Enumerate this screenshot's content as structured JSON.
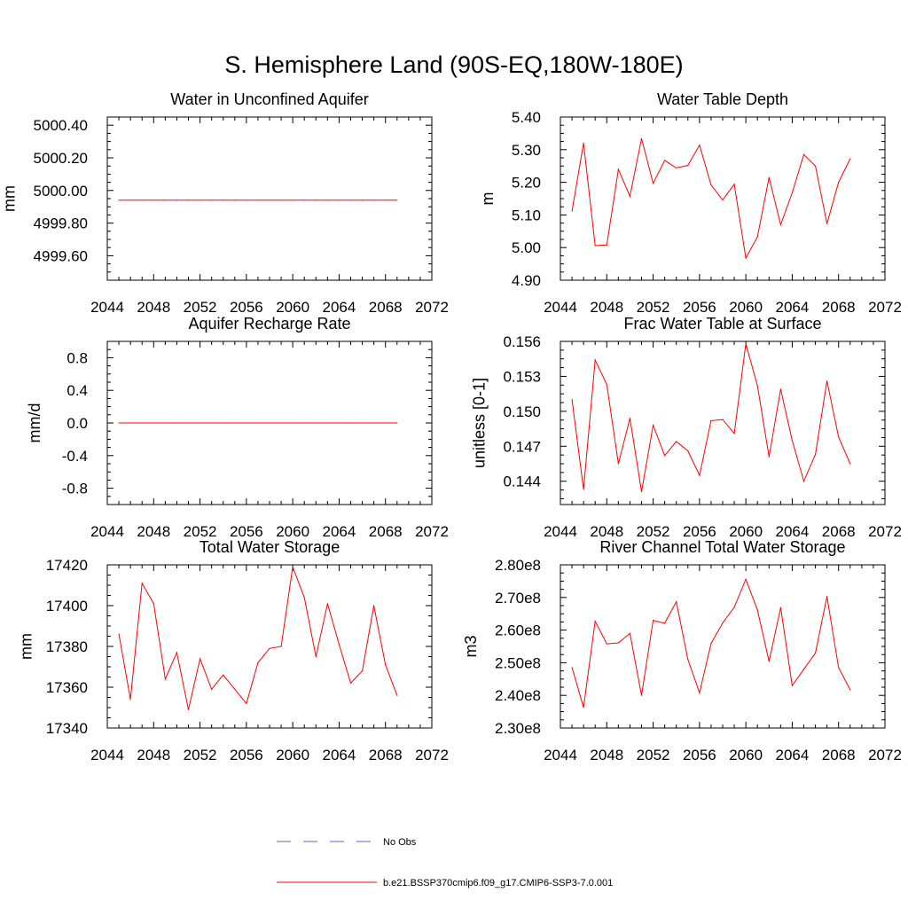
{
  "figure_title": "S. Hemisphere Land (90S-EQ,180W-180E)",
  "legend": {
    "obs_label": "No Obs",
    "obs_color": "#5566cc",
    "model_label": "b.e21.BSSP370cmip6.f09_g17.CMIP6-SSP3-7.0.001",
    "model_color": "#ff0000"
  },
  "chart_data": [
    {
      "type": "line",
      "title": "Water in Unconfined Aquifer",
      "ylabel": "mm",
      "xlim": [
        2044,
        2072
      ],
      "ylim": [
        4999.45,
        5000.45
      ],
      "xticks": [
        "2044",
        "2048",
        "2052",
        "2056",
        "2060",
        "2064",
        "2068",
        "2072"
      ],
      "yticks": [
        {
          "v": 4999.6,
          "label": "4999.60"
        },
        {
          "v": 4999.8,
          "label": "4999.80"
        },
        {
          "v": 5000.0,
          "label": "5000.00"
        },
        {
          "v": 5000.2,
          "label": "5000.20"
        },
        {
          "v": 5000.4,
          "label": "5000.40"
        }
      ],
      "series": [
        {
          "name": "b.e21.BSSP370cmip6.f09_g17.CMIP6-SSP3-7.0.001",
          "x": [
            2045,
            2046,
            2047,
            2048,
            2049,
            2050,
            2051,
            2052,
            2053,
            2054,
            2055,
            2056,
            2057,
            2058,
            2059,
            2060,
            2061,
            2062,
            2063,
            2064,
            2065,
            2066,
            2067,
            2068,
            2069
          ],
          "values": [
            4999.94,
            4999.94,
            4999.94,
            4999.94,
            4999.94,
            4999.94,
            4999.94,
            4999.94,
            4999.94,
            4999.94,
            4999.94,
            4999.94,
            4999.94,
            4999.94,
            4999.94,
            4999.94,
            4999.94,
            4999.94,
            4999.94,
            4999.94,
            4999.94,
            4999.94,
            4999.94,
            4999.94,
            4999.94
          ]
        }
      ]
    },
    {
      "type": "line",
      "title": "Water Table Depth",
      "ylabel": "m",
      "xlim": [
        2044,
        2072
      ],
      "ylim": [
        4.9,
        5.4
      ],
      "xticks": [
        "2044",
        "2048",
        "2052",
        "2056",
        "2060",
        "2064",
        "2068",
        "2072"
      ],
      "yticks": [
        {
          "v": 4.9,
          "label": "4.90"
        },
        {
          "v": 5.0,
          "label": "5.00"
        },
        {
          "v": 5.1,
          "label": "5.10"
        },
        {
          "v": 5.2,
          "label": "5.20"
        },
        {
          "v": 5.3,
          "label": "5.30"
        },
        {
          "v": 5.4,
          "label": "5.40"
        }
      ],
      "series": [
        {
          "name": "b.e21.BSSP370cmip6.f09_g17.CMIP6-SSP3-7.0.001",
          "x": [
            2045,
            2046,
            2047,
            2048,
            2049,
            2050,
            2051,
            2052,
            2053,
            2054,
            2055,
            2056,
            2057,
            2058,
            2059,
            2060,
            2061,
            2062,
            2063,
            2064,
            2065,
            2066,
            2067,
            2068,
            2069
          ],
          "values": [
            5.112,
            5.32,
            5.006,
            5.008,
            5.24,
            5.157,
            5.334,
            5.197,
            5.267,
            5.244,
            5.252,
            5.314,
            5.192,
            5.146,
            5.194,
            4.968,
            5.033,
            5.215,
            5.07,
            5.168,
            5.285,
            5.25,
            5.073,
            5.2,
            5.272
          ]
        }
      ]
    },
    {
      "type": "line",
      "title": "Aquifer Recharge Rate",
      "ylabel": "mm/d",
      "xlim": [
        2044,
        2072
      ],
      "ylim": [
        -1.0,
        1.0
      ],
      "xticks": [
        "2044",
        "2048",
        "2052",
        "2056",
        "2060",
        "2064",
        "2068",
        "2072"
      ],
      "yticks": [
        {
          "v": -0.8,
          "label": "-0.8"
        },
        {
          "v": -0.4,
          "label": "-0.4"
        },
        {
          "v": 0.0,
          "label": "0.0"
        },
        {
          "v": 0.4,
          "label": "0.4"
        },
        {
          "v": 0.8,
          "label": "0.8"
        }
      ],
      "series": [
        {
          "name": "b.e21.BSSP370cmip6.f09_g17.CMIP6-SSP3-7.0.001",
          "x": [
            2045,
            2046,
            2047,
            2048,
            2049,
            2050,
            2051,
            2052,
            2053,
            2054,
            2055,
            2056,
            2057,
            2058,
            2059,
            2060,
            2061,
            2062,
            2063,
            2064,
            2065,
            2066,
            2067,
            2068,
            2069
          ],
          "values": [
            0,
            0,
            0,
            0,
            0,
            0,
            0,
            0,
            0,
            0,
            0,
            0,
            0,
            0,
            0,
            0,
            0,
            0,
            0,
            0,
            0,
            0,
            0,
            0,
            0
          ]
        }
      ]
    },
    {
      "type": "line",
      "title": "Frac Water Table at Surface",
      "ylabel": "unitless [0-1]",
      "xlim": [
        2044,
        2072
      ],
      "ylim": [
        0.142,
        0.156
      ],
      "xticks": [
        "2044",
        "2048",
        "2052",
        "2056",
        "2060",
        "2064",
        "2068",
        "2072"
      ],
      "yticks": [
        {
          "v": 0.144,
          "label": "0.144"
        },
        {
          "v": 0.147,
          "label": "0.147"
        },
        {
          "v": 0.15,
          "label": "0.150"
        },
        {
          "v": 0.153,
          "label": "0.153"
        },
        {
          "v": 0.156,
          "label": "0.156"
        }
      ],
      "series": [
        {
          "name": "b.e21.BSSP370cmip6.f09_g17.CMIP6-SSP3-7.0.001",
          "x": [
            2045,
            2046,
            2047,
            2048,
            2049,
            2050,
            2051,
            2052,
            2053,
            2054,
            2055,
            2056,
            2057,
            2058,
            2059,
            2060,
            2061,
            2062,
            2063,
            2064,
            2065,
            2066,
            2067,
            2068,
            2069
          ],
          "values": [
            0.151,
            0.1433,
            0.1544,
            0.1523,
            0.1455,
            0.1494,
            0.1431,
            0.1488,
            0.1462,
            0.1474,
            0.1466,
            0.1445,
            0.1492,
            0.1493,
            0.1481,
            0.1558,
            0.1522,
            0.1461,
            0.1519,
            0.1475,
            0.144,
            0.1463,
            0.1526,
            0.1478,
            0.1455
          ]
        }
      ]
    },
    {
      "type": "line",
      "title": "Total Water Storage",
      "ylabel": "mm",
      "xlim": [
        2044,
        2072
      ],
      "ylim": [
        17340,
        17420
      ],
      "xticks": [
        "2044",
        "2048",
        "2052",
        "2056",
        "2060",
        "2064",
        "2068",
        "2072"
      ],
      "yticks": [
        {
          "v": 17340,
          "label": "17340"
        },
        {
          "v": 17360,
          "label": "17360"
        },
        {
          "v": 17380,
          "label": "17380"
        },
        {
          "v": 17400,
          "label": "17400"
        },
        {
          "v": 17420,
          "label": "17420"
        }
      ],
      "series": [
        {
          "name": "b.e21.BSSP370cmip6.f09_g17.CMIP6-SSP3-7.0.001",
          "x": [
            2045,
            2046,
            2047,
            2048,
            2049,
            2050,
            2051,
            2052,
            2053,
            2054,
            2055,
            2056,
            2057,
            2058,
            2059,
            2060,
            2061,
            2062,
            2063,
            2064,
            2065,
            2066,
            2067,
            2068,
            2069
          ],
          "values": [
            17386,
            17354,
            17411,
            17401,
            17364,
            17377,
            17349,
            17374,
            17359,
            17366,
            17359,
            17352,
            17372,
            17379,
            17380,
            17419,
            17404,
            17375,
            17401,
            17381,
            17362,
            17368,
            17400,
            17371,
            17356
          ]
        }
      ]
    },
    {
      "type": "line",
      "title": "River Channel Total Water Storage",
      "ylabel": "m3",
      "xlim": [
        2044,
        2072
      ],
      "ylim": [
        230000000,
        280000000
      ],
      "xticks": [
        "2044",
        "2048",
        "2052",
        "2056",
        "2060",
        "2064",
        "2068",
        "2072"
      ],
      "yticks": [
        {
          "v": 230000000,
          "label": "2.30e8"
        },
        {
          "v": 240000000,
          "label": "2.40e8"
        },
        {
          "v": 250000000,
          "label": "2.50e8"
        },
        {
          "v": 260000000,
          "label": "2.60e8"
        },
        {
          "v": 270000000,
          "label": "2.70e8"
        },
        {
          "v": 280000000,
          "label": "2.80e8"
        }
      ],
      "series": [
        {
          "name": "b.e21.BSSP370cmip6.f09_g17.CMIP6-SSP3-7.0.001",
          "x": [
            2045,
            2046,
            2047,
            2048,
            2049,
            2050,
            2051,
            2052,
            2053,
            2054,
            2055,
            2056,
            2057,
            2058,
            2059,
            2060,
            2061,
            2062,
            2063,
            2064,
            2065,
            2066,
            2067,
            2068,
            2069
          ],
          "values": [
            248500000,
            236300000,
            262700000,
            255800000,
            256100000,
            259000000,
            240000000,
            263000000,
            262100000,
            268700000,
            251000000,
            240800000,
            255900000,
            262200000,
            267000000,
            275600000,
            266200000,
            250400000,
            266900000,
            243000000,
            248000000,
            253000000,
            270300000,
            248500000,
            241700000
          ]
        }
      ]
    }
  ]
}
